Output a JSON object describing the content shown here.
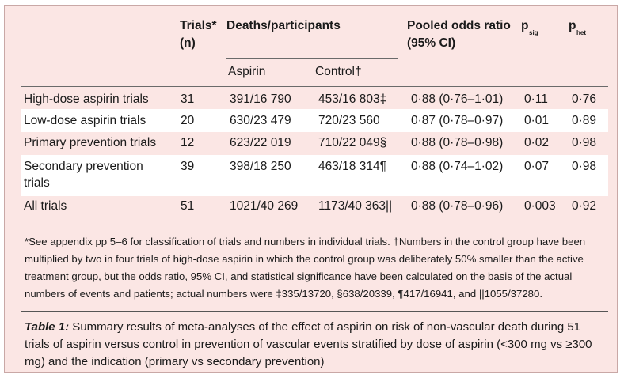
{
  "header": {
    "trials": "Trials*",
    "trials_unit": "(n)",
    "deaths": "Deaths/participants",
    "pooled": "Pooled odds ratio",
    "pooled_ci": "(95% CI)",
    "psig_p": "p",
    "psig_sub": "sig",
    "phet_p": "p",
    "phet_sub": "het",
    "aspirin": "Aspirin",
    "control": "Control†"
  },
  "rows": [
    {
      "label": "High-dose aspirin trials",
      "trials": "31",
      "aspirin": "391/16 790",
      "control": "453/16 803‡",
      "or": "0·88 (0·76–1·01)",
      "psig": "0·11",
      "phet": "0·76"
    },
    {
      "label": "Low-dose aspirin trials",
      "trials": "20",
      "aspirin": "630/23 479",
      "control": "720/23 560",
      "or": "0·87 (0·78–0·97)",
      "psig": "0·01",
      "phet": "0·89"
    },
    {
      "label": "Primary prevention trials",
      "trials": "12",
      "aspirin": "623/22 019",
      "control": "710/22 049§",
      "or": "0·88 (0·78–0·98)",
      "psig": "0·02",
      "phet": "0·98"
    },
    {
      "label": "Secondary prevention trials",
      "trials": "39",
      "aspirin": "398/18 250",
      "control": "463/18 314¶",
      "or": "0·88 (0·74–1·02)",
      "psig": "0·07",
      "phet": "0·98"
    },
    {
      "label": "All trials",
      "trials": "51",
      "aspirin": "1021/40 269",
      "control": "1173/40 363||",
      "or": "0·88 (0·78–0·96)",
      "psig": "0·003",
      "phet": "0·92"
    }
  ],
  "footnote": "*See appendix pp 5–6 for classification of trials and numbers in individual trials. †Numbers in the control group have been multiplied by two in four trials of high-dose aspirin in which the control group was deliberately 50% smaller than the active treatment group, but the odds ratio, 95% CI, and statistical significance have been calculated on the basis of the actual numbers of events and patients; actual numbers were ‡335/13720, §638/20339, ¶417/16941, and ||1055/37280.",
  "caption": {
    "label": "Table 1:",
    "text": " Summary results of meta-analyses of the effect of aspirin on risk of non-vascular death during 51 trials of aspirin versus control in prevention of vascular events stratified by dose of aspirin (<300 mg vs ≥300 mg) and the indication (primary vs secondary prevention)"
  }
}
